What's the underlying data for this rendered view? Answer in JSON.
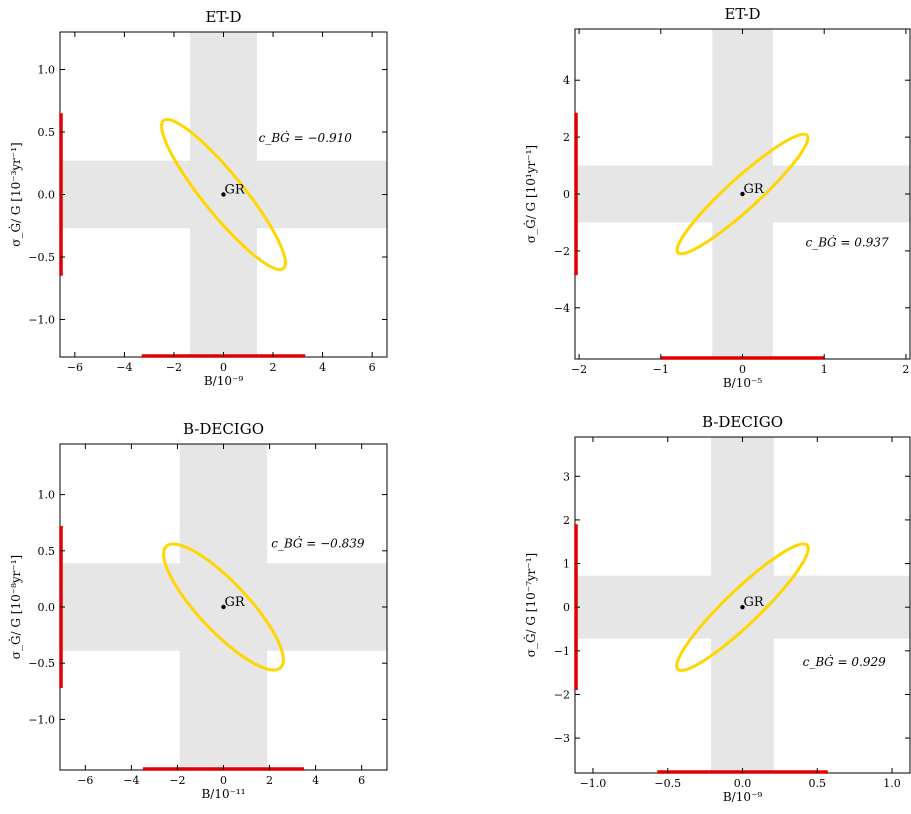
{
  "colors": {
    "ellipse": "#FFD700",
    "bars": "#E00000",
    "bands": "#E6E6E6",
    "point": "#000000"
  },
  "chart_data": [
    {
      "type": "scatter",
      "title": "ET-D",
      "xlabel": "B/10⁻⁹",
      "ylabel": "σ_Ġ/ G [10⁻³yr⁻¹]",
      "xlim": [
        -6.6,
        6.6
      ],
      "ylim": [
        -1.3,
        1.3
      ],
      "xticks": [
        -6,
        -4,
        -2,
        0,
        2,
        4,
        6
      ],
      "xtick_labels": [
        "−6",
        "−4",
        "−2",
        "0",
        "2",
        "4",
        "6"
      ],
      "yticks": [
        -1.0,
        -0.5,
        0.0,
        0.5,
        1.0
      ],
      "ytick_labels": [
        "−1.0",
        "−0.5",
        "0.0",
        "0.5",
        "1.0"
      ],
      "correlation_label": "c_BĠ = −0.910",
      "label_pos": [
        3.3,
        0.42
      ],
      "point_label": "GR",
      "point": [
        0,
        0
      ],
      "sigma_x": 2.5,
      "sigma_y": 0.6,
      "correlation": -0.91,
      "band_x": [
        -1.35,
        1.35
      ],
      "band_y": [
        -0.27,
        0.27
      ],
      "bar_x": [
        -3.3,
        3.3
      ],
      "bar_y": [
        -0.65,
        0.65
      ],
      "grid": false
    },
    {
      "type": "scatter",
      "title": "ET-D",
      "xlabel": "B/10⁻⁵",
      "ylabel": "σ_Ġ/ G [10¹yr⁻¹]",
      "xlim": [
        -2.05,
        2.05
      ],
      "ylim": [
        -5.8,
        5.8
      ],
      "xticks": [
        -2,
        -1,
        0,
        1,
        2
      ],
      "xtick_labels": [
        "−2",
        "−1",
        "0",
        "1",
        "2"
      ],
      "yticks": [
        -4,
        -2,
        0,
        2,
        4
      ],
      "ytick_labels": [
        "−4",
        "−2",
        "0",
        "2",
        "4"
      ],
      "correlation_label": "c_BĠ = 0.937",
      "label_pos": [
        1.28,
        -1.85
      ],
      "point_label": "GR",
      "point": [
        0,
        0
      ],
      "sigma_x": 0.8,
      "sigma_y": 2.1,
      "correlation": 0.937,
      "band_x": [
        -0.37,
        0.37
      ],
      "band_y": [
        -1.0,
        1.0
      ],
      "bar_x": [
        -1.0,
        1.0
      ],
      "bar_y": [
        -2.85,
        2.85
      ],
      "grid": false
    },
    {
      "type": "scatter",
      "title": "B-DECIGO",
      "xlabel": "B/10⁻¹¹",
      "ylabel": "σ_Ġ/ G [10⁻⁸yr⁻¹]",
      "xlim": [
        -7.1,
        7.1
      ],
      "ylim": [
        -1.45,
        1.45
      ],
      "xticks": [
        -6,
        -4,
        -2,
        0,
        2,
        4,
        6
      ],
      "xtick_labels": [
        "−6",
        "−4",
        "−2",
        "0",
        "2",
        "4",
        "6"
      ],
      "yticks": [
        -1.0,
        -0.5,
        0.0,
        0.5,
        1.0
      ],
      "ytick_labels": [
        "−1.0",
        "−0.5",
        "0.0",
        "0.5",
        "1.0"
      ],
      "correlation_label": "c_BĠ = −0.839",
      "label_pos": [
        4.1,
        0.53
      ],
      "point_label": "GR",
      "point": [
        0,
        0
      ],
      "sigma_x": 2.6,
      "sigma_y": 0.56,
      "correlation": -0.839,
      "band_x": [
        -1.9,
        1.9
      ],
      "band_y": [
        -0.39,
        0.39
      ],
      "bar_x": [
        -3.5,
        3.5
      ],
      "bar_y": [
        -0.72,
        0.72
      ],
      "grid": false
    },
    {
      "type": "scatter",
      "title": "B-DECIGO",
      "xlabel": "B/10⁻⁹",
      "ylabel": "σ_Ġ/ G [10⁻⁷yr⁻¹]",
      "xlim": [
        -1.12,
        1.12
      ],
      "ylim": [
        -3.8,
        3.9
      ],
      "xticks": [
        -1.0,
        -0.5,
        0.0,
        0.5,
        1.0
      ],
      "xtick_labels": [
        "−1.0",
        "−0.5",
        "0.0",
        "0.5",
        "1.0"
      ],
      "yticks": [
        -3,
        -2,
        -1,
        0,
        1,
        2,
        3
      ],
      "ytick_labels": [
        "−3",
        "−2",
        "−1",
        "0",
        "1",
        "2",
        "3"
      ],
      "correlation_label": "c_BĠ = 0.929",
      "label_pos": [
        0.68,
        -1.35
      ],
      "point_label": "GR",
      "point": [
        0,
        0
      ],
      "sigma_x": 0.44,
      "sigma_y": 1.45,
      "correlation": 0.929,
      "band_x": [
        -0.21,
        0.21
      ],
      "band_y": [
        -0.72,
        0.72
      ],
      "bar_x": [
        -0.57,
        0.57
      ],
      "bar_y": [
        -1.9,
        1.9
      ],
      "grid": false
    }
  ]
}
